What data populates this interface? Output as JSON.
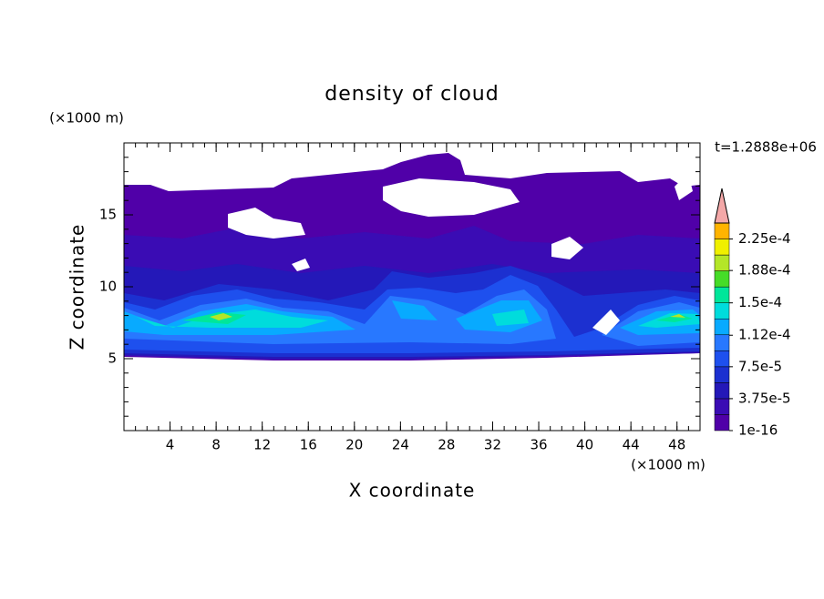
{
  "chart_data": {
    "type": "contour",
    "title": "density of cloud",
    "x_label": "X coordinate",
    "y_label": "Z coordinate",
    "x_unit": "(×1000 m)",
    "y_unit": "(×1000 m)",
    "time_label": "t=1.2888e+06",
    "xlim": [
      0,
      50
    ],
    "xticks": [
      4,
      8,
      12,
      16,
      20,
      24,
      28,
      32,
      36,
      40,
      44,
      48
    ],
    "ylim": [
      0,
      20
    ],
    "yticks": [
      5,
      10,
      15
    ],
    "colorbar": {
      "clim": [
        1e-16,
        0.00024375
      ],
      "colors": [
        "#5000a8",
        "#3a0cb4",
        "#2418b8",
        "#1c30d0",
        "#1e50ee",
        "#2878ff",
        "#08aaff",
        "#00dcdc",
        "#00e69a",
        "#46dc28",
        "#b4e628",
        "#f0f000",
        "#ffb400"
      ],
      "extend_color": "#f4a8a8",
      "ticks": [
        {
          "value": 1e-16,
          "label": "1e-16"
        },
        {
          "value": 3.75e-05,
          "label": "3.75e-5"
        },
        {
          "value": 7.5e-05,
          "label": "7.5e-5"
        },
        {
          "value": 0.000112,
          "label": "1.12e-4"
        },
        {
          "value": 0.00015,
          "label": "1.5e-4"
        },
        {
          "value": 0.000188,
          "label": "1.88e-4"
        },
        {
          "value": 0.000225,
          "label": "2.25e-4"
        }
      ]
    }
  }
}
